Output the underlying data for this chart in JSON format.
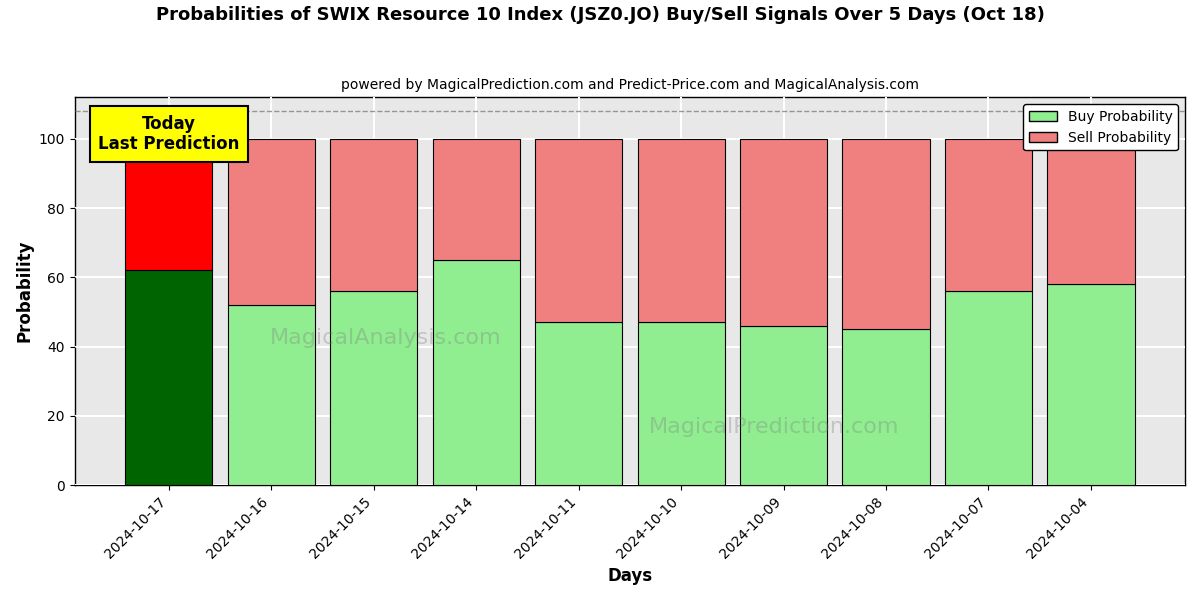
{
  "title": "Probabilities of SWIX Resource 10 Index (JSZ0.JO) Buy/Sell Signals Over 5 Days (Oct 18)",
  "subtitle": "powered by MagicalPrediction.com and Predict-Price.com and MagicalAnalysis.com",
  "xlabel": "Days",
  "ylabel": "Probability",
  "categories": [
    "2024-10-17",
    "2024-10-16",
    "2024-10-15",
    "2024-10-14",
    "2024-10-11",
    "2024-10-10",
    "2024-10-09",
    "2024-10-08",
    "2024-10-07",
    "2024-10-04"
  ],
  "buy_values": [
    62,
    52,
    56,
    65,
    47,
    47,
    46,
    45,
    56,
    58
  ],
  "sell_values": [
    38,
    48,
    44,
    35,
    53,
    53,
    54,
    55,
    44,
    42
  ],
  "first_bar_buy_color": "#006400",
  "first_bar_sell_color": "#FF0000",
  "other_buy_color": "#90EE90",
  "other_sell_color": "#F08080",
  "bar_edge_color": "#000000",
  "background_color": "#ffffff",
  "plot_bg_color": "#e8e8e8",
  "grid_color": "#ffffff",
  "annotation_box_color": "#FFFF00",
  "annotation_text": "Today\nLast Prediction",
  "watermark1": "MagicalAnalysis.com",
  "watermark2": "MagicalPrediction.com",
  "ylim": [
    0,
    112
  ],
  "yticks": [
    0,
    20,
    40,
    60,
    80,
    100
  ],
  "dashed_line_y": 108,
  "legend_buy_label": "Buy Probability",
  "legend_sell_label": "Sell Probability",
  "title_fontsize": 13,
  "subtitle_fontsize": 10,
  "axis_label_fontsize": 12,
  "tick_fontsize": 10,
  "legend_fontsize": 10
}
